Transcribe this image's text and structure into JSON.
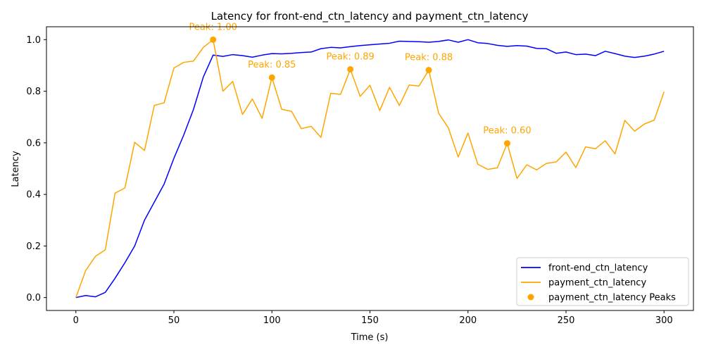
{
  "chart_data": {
    "type": "line",
    "title": "Latency for front-end_ctn_latency and payment_ctn_latency",
    "xlabel": "Time (s)",
    "ylabel": "Latency",
    "xlim": [
      -15,
      315
    ],
    "ylim": [
      -0.05,
      1.05
    ],
    "xticks": [
      0,
      50,
      100,
      150,
      200,
      250,
      300
    ],
    "xtick_labels": [
      "0",
      "50",
      "100",
      "150",
      "200",
      "250",
      "300"
    ],
    "yticks": [
      0.0,
      0.2,
      0.4,
      0.6,
      0.8,
      1.0
    ],
    "ytick_labels": [
      "0.0",
      "0.2",
      "0.4",
      "0.6",
      "0.8",
      "1.0"
    ],
    "grid": false,
    "legend_position": "bottom-right",
    "x": [
      0,
      5,
      10,
      15,
      20,
      25,
      30,
      35,
      40,
      45,
      50,
      55,
      60,
      65,
      70,
      75,
      80,
      85,
      90,
      95,
      100,
      105,
      110,
      115,
      120,
      125,
      130,
      135,
      140,
      145,
      150,
      155,
      160,
      165,
      170,
      175,
      180,
      185,
      190,
      195,
      200,
      205,
      210,
      215,
      220,
      225,
      230,
      235,
      240,
      245,
      250,
      255,
      260,
      265,
      270,
      275,
      280,
      285,
      290,
      295,
      300
    ],
    "series": [
      {
        "name": "front-end_ctn_latency",
        "color": "#0000ff",
        "values": [
          0.0,
          0.008,
          0.003,
          0.02,
          0.075,
          0.135,
          0.2,
          0.3,
          0.37,
          0.44,
          0.54,
          0.63,
          0.73,
          0.855,
          0.94,
          0.935,
          0.942,
          0.938,
          0.932,
          0.94,
          0.946,
          0.945,
          0.947,
          0.95,
          0.952,
          0.965,
          0.97,
          0.968,
          0.973,
          0.977,
          0.98,
          0.983,
          0.986,
          0.994,
          0.993,
          0.992,
          0.99,
          0.993,
          0.999,
          0.99,
          1.0,
          0.988,
          0.985,
          0.978,
          0.974,
          0.977,
          0.975,
          0.966,
          0.965,
          0.947,
          0.952,
          0.942,
          0.944,
          0.938,
          0.955,
          0.946,
          0.936,
          0.931,
          0.936,
          0.944,
          0.955
        ]
      },
      {
        "name": "payment_ctn_latency",
        "color": "#ffa500",
        "values": [
          0.0,
          0.105,
          0.16,
          0.185,
          0.405,
          0.425,
          0.602,
          0.57,
          0.745,
          0.755,
          0.89,
          0.912,
          0.917,
          0.97,
          1.0,
          0.8,
          0.838,
          0.71,
          0.77,
          0.695,
          0.853,
          0.73,
          0.722,
          0.655,
          0.664,
          0.621,
          0.792,
          0.788,
          0.885,
          0.78,
          0.823,
          0.725,
          0.815,
          0.745,
          0.824,
          0.82,
          0.882,
          0.715,
          0.658,
          0.545,
          0.638,
          0.517,
          0.497,
          0.503,
          0.598,
          0.462,
          0.515,
          0.495,
          0.52,
          0.526,
          0.564,
          0.504,
          0.584,
          0.577,
          0.608,
          0.557,
          0.687,
          0.645,
          0.673,
          0.688,
          0.798
        ]
      }
    ],
    "peaks": {
      "name": "payment_ctn_latency Peaks",
      "color": "#ffa500",
      "points": [
        {
          "x": 70,
          "y": 1.0,
          "label": "Peak: 1.00"
        },
        {
          "x": 100,
          "y": 0.853,
          "label": "Peak: 0.85"
        },
        {
          "x": 140,
          "y": 0.885,
          "label": "Peak: 0.89"
        },
        {
          "x": 180,
          "y": 0.882,
          "label": "Peak: 0.88"
        },
        {
          "x": 220,
          "y": 0.598,
          "label": "Peak: 0.60"
        }
      ]
    }
  }
}
